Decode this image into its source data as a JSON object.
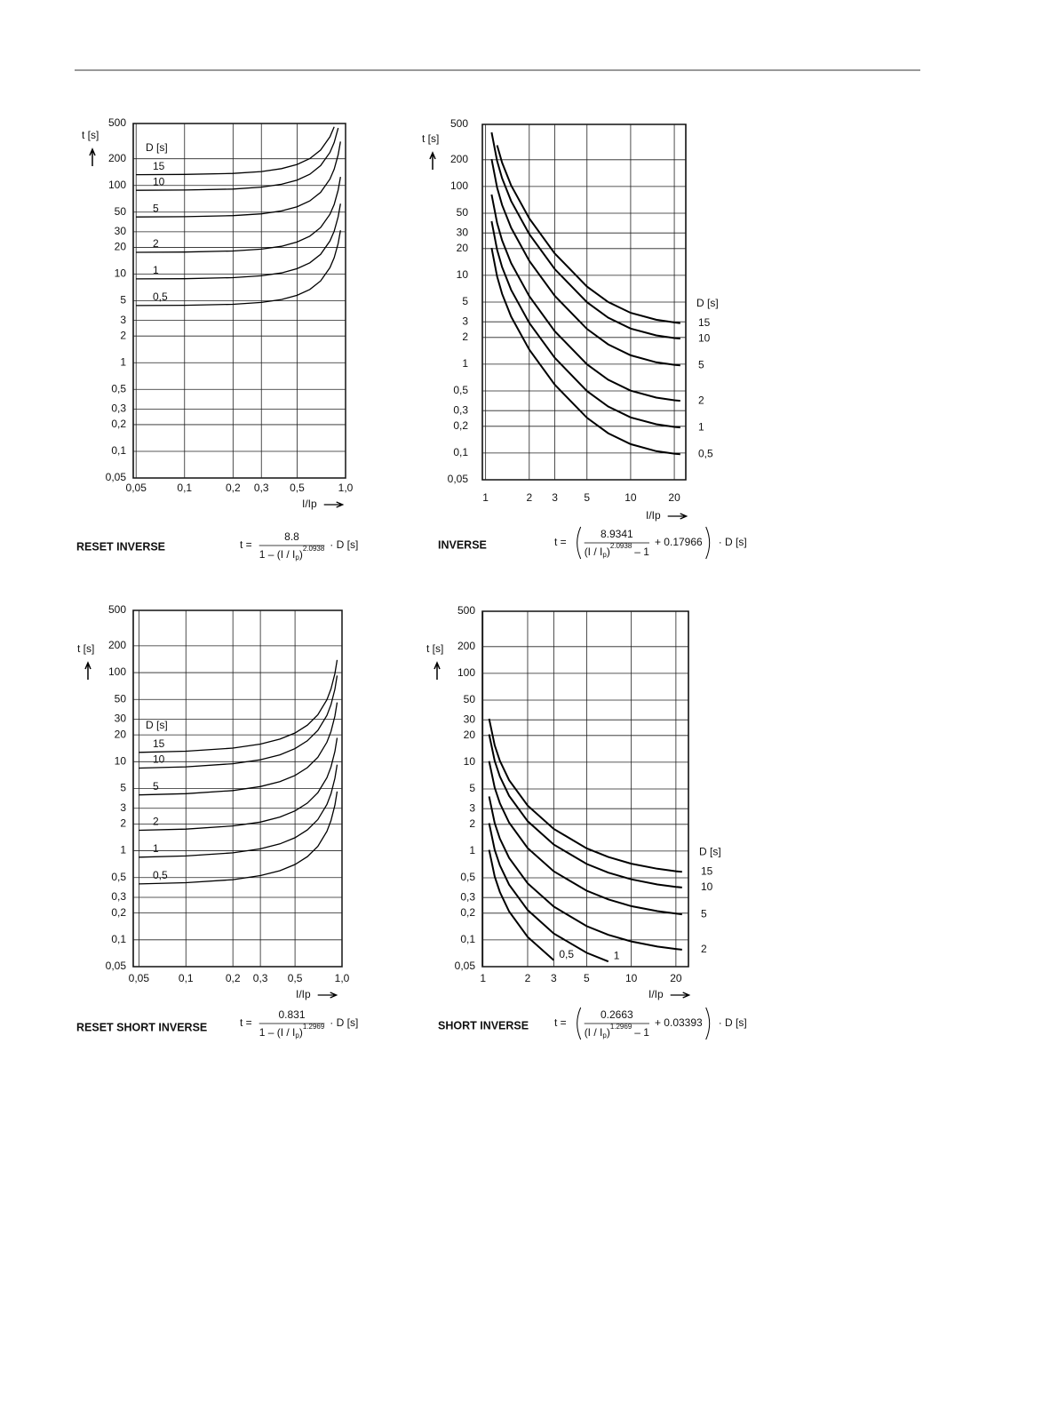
{
  "chart_data": [
    {
      "type": "line",
      "title": "RESET INVERSE",
      "xscale": "log",
      "yscale": "log",
      "xlabel": "I/Ip",
      "ylabel": "t [s]",
      "legend_title": "D [s]",
      "legend": "left",
      "grid": true,
      "formula": {
        "lhs": "t =",
        "numerator": "8.8",
        "denominator": "1 – (I / I",
        "subscript": "p",
        "close": ")",
        "exponent": "2.0938",
        "rhs": "· D [s]"
      },
      "x": [
        0.05,
        0.1,
        0.2,
        0.3,
        0.4,
        0.5,
        0.6,
        0.7,
        0.8,
        0.85,
        0.9,
        0.93
      ],
      "series": [
        {
          "name": "15",
          "color": "#000000",
          "values": [
            132.3,
            133.1,
            136.7,
            143.5,
            154.7,
            172.4,
            200.9,
            250.9,
            353.8,
            457.6,
            null,
            null
          ]
        },
        {
          "name": "10",
          "color": "#000000",
          "values": [
            88.2,
            88.7,
            91.1,
            95.7,
            103.1,
            114.9,
            133.9,
            167.3,
            235.8,
            305.1,
            444.5,
            null
          ]
        },
        {
          "name": "5",
          "color": "#000000",
          "values": [
            44.1,
            44.4,
            45.6,
            47.8,
            51.6,
            57.5,
            67.0,
            83.6,
            117.9,
            152.5,
            222.2,
            312.0
          ]
        },
        {
          "name": "2",
          "color": "#000000",
          "values": [
            17.6,
            17.7,
            18.2,
            19.1,
            20.6,
            23.0,
            26.8,
            33.5,
            47.2,
            61.0,
            88.9,
            124.8
          ]
        },
        {
          "name": "1",
          "color": "#000000",
          "values": [
            8.82,
            8.87,
            9.11,
            9.57,
            10.3,
            11.5,
            13.4,
            16.7,
            23.6,
            30.5,
            44.4,
            62.4
          ]
        },
        {
          "name": "0,5",
          "color": "#000000",
          "values": [
            4.41,
            4.44,
            4.56,
            4.78,
            5.16,
            5.75,
            6.7,
            8.36,
            11.8,
            15.3,
            22.2,
            31.2
          ]
        }
      ],
      "xlim": [
        0.048,
        1
      ],
      "ylim": [
        0.05,
        500
      ],
      "xticks": [
        {
          "value": 0.05,
          "label": "0,05"
        },
        {
          "value": 0.1,
          "label": "0,1"
        },
        {
          "value": 0.2,
          "label": "0,2"
        },
        {
          "value": 0.3,
          "label": "0,3"
        },
        {
          "value": 0.5,
          "label": "0,5"
        },
        {
          "value": 1,
          "label": "1,0"
        }
      ],
      "yticks": [
        500,
        200,
        100,
        50,
        30,
        20,
        10,
        5,
        3,
        2,
        1,
        {
          "value": 0.5,
          "label": "0,5"
        },
        {
          "value": 0.3,
          "label": "0,3"
        },
        {
          "value": 0.2,
          "label": "0,2"
        },
        {
          "value": 0.1,
          "label": "0,1"
        },
        {
          "value": 0.05,
          "label": "0,05"
        }
      ]
    },
    {
      "type": "line",
      "title": "INVERSE",
      "xscale": "log",
      "yscale": "log",
      "xlabel": "I/Ip",
      "ylabel": "t [s]",
      "legend_title": "D [s]",
      "legend": "right",
      "grid": true,
      "formula": {
        "lhs": "t =",
        "numerator": "8.9341",
        "denominator": "(I / I",
        "subscript": "p",
        "close": ")",
        "exponent": "2.0938",
        "tail": "– 1",
        "addend": "+ 0.17966",
        "rhs": "· D [s]"
      },
      "x": [
        1.1,
        1.2,
        1.3,
        1.5,
        2,
        3,
        5,
        7,
        10,
        15,
        20,
        22
      ],
      "series": [
        {
          "name": "15",
          "color": "#000000",
          "values": [
            null,
            291.0,
            185.7,
            102.9,
            43.7,
            17.63,
            7.47,
            5.01,
            3.78,
            3.16,
            2.95,
            2.9
          ]
        },
        {
          "name": "10",
          "color": "#000000",
          "values": [
            406.2,
            194.0,
            123.8,
            68.6,
            29.13,
            11.75,
            4.98,
            3.34,
            2.52,
            2.11,
            1.97,
            1.94
          ]
        },
        {
          "name": "5",
          "color": "#000000",
          "values": [
            203.1,
            97.0,
            61.9,
            34.3,
            14.57,
            5.88,
            2.49,
            1.67,
            1.26,
            1.05,
            0.983,
            0.968
          ]
        },
        {
          "name": "2",
          "color": "#000000",
          "values": [
            81.2,
            38.8,
            24.8,
            13.72,
            5.83,
            2.35,
            0.996,
            0.668,
            0.504,
            0.421,
            0.393,
            0.387
          ]
        },
        {
          "name": "1",
          "color": "#000000",
          "values": [
            40.6,
            19.4,
            12.38,
            6.86,
            2.91,
            1.18,
            0.498,
            0.334,
            0.252,
            0.211,
            0.197,
            0.194
          ]
        },
        {
          "name": "0,5",
          "color": "#000000",
          "values": [
            20.3,
            9.7,
            6.19,
            3.43,
            1.46,
            0.588,
            0.249,
            0.167,
            0.126,
            0.105,
            0.0983,
            0.0968
          ]
        }
      ],
      "xlim": [
        0.95,
        24
      ],
      "ylim": [
        0.05,
        500
      ],
      "xticks": [
        1,
        2,
        3,
        5,
        10,
        20
      ],
      "yticks": [
        500,
        200,
        100,
        50,
        30,
        20,
        10,
        5,
        3,
        2,
        1,
        {
          "value": 0.5,
          "label": "0,5"
        },
        {
          "value": 0.3,
          "label": "0,3"
        },
        {
          "value": 0.2,
          "label": "0,2"
        },
        {
          "value": 0.1,
          "label": "0,1"
        },
        {
          "value": 0.05,
          "label": "0,05"
        }
      ]
    },
    {
      "type": "line",
      "title": "RESET SHORT INVERSE",
      "xscale": "log",
      "yscale": "log",
      "xlabel": "I/Ip",
      "ylabel": "t [s]",
      "legend_title": "D [s]",
      "legend": "left",
      "grid": true,
      "formula": {
        "lhs": "t =",
        "numerator": "0.831",
        "denominator": "1 – (I / I",
        "subscript": "p",
        "close": ")",
        "exponent": "1.2969",
        "rhs": "· D [s]"
      },
      "x": [
        0.05,
        0.1,
        0.2,
        0.3,
        0.4,
        0.5,
        0.6,
        0.7,
        0.8,
        0.85,
        0.9,
        0.93
      ],
      "series": [
        {
          "name": "15",
          "color": "#000000",
          "values": [
            12.73,
            13.13,
            14.23,
            15.77,
            17.93,
            21.02,
            25.73,
            33.65,
            49.6,
            65.57,
            97.61,
            138.9
          ]
        },
        {
          "name": "10",
          "color": "#000000",
          "values": [
            8.48,
            8.75,
            9.49,
            10.52,
            11.95,
            14.01,
            17.16,
            22.44,
            33.07,
            43.71,
            65.08,
            92.6
          ]
        },
        {
          "name": "5",
          "color": "#000000",
          "values": [
            4.24,
            4.38,
            4.74,
            5.26,
            5.98,
            7.01,
            8.58,
            11.22,
            16.53,
            21.86,
            32.54,
            46.3
          ]
        },
        {
          "name": "2",
          "color": "#000000",
          "values": [
            1.7,
            1.75,
            1.9,
            2.1,
            2.39,
            2.8,
            3.43,
            4.49,
            6.61,
            8.74,
            13.02,
            18.5
          ]
        },
        {
          "name": "1",
          "color": "#000000",
          "values": [
            0.848,
            0.875,
            0.949,
            1.052,
            1.195,
            1.401,
            1.716,
            2.244,
            3.307,
            4.371,
            6.508,
            9.26
          ]
        },
        {
          "name": "0,5",
          "color": "#000000",
          "values": [
            0.424,
            0.438,
            0.474,
            0.526,
            0.598,
            0.701,
            0.858,
            1.122,
            1.653,
            2.186,
            3.254,
            4.63
          ]
        }
      ],
      "xlim": [
        0.046,
        1
      ],
      "ylim": [
        0.05,
        500
      ],
      "xticks": [
        {
          "value": 0.05,
          "label": "0,05"
        },
        {
          "value": 0.1,
          "label": "0,1"
        },
        {
          "value": 0.2,
          "label": "0,2"
        },
        {
          "value": 0.3,
          "label": "0,3"
        },
        {
          "value": 0.5,
          "label": "0,5"
        },
        {
          "value": 1,
          "label": "1,0"
        }
      ],
      "yticks": [
        500,
        200,
        100,
        50,
        30,
        20,
        10,
        5,
        3,
        2,
        1,
        {
          "value": 0.5,
          "label": "0,5"
        },
        {
          "value": 0.3,
          "label": "0,3"
        },
        {
          "value": 0.2,
          "label": "0,2"
        },
        {
          "value": 0.1,
          "label": "0,1"
        },
        {
          "value": 0.05,
          "label": "0,05"
        }
      ]
    },
    {
      "type": "line",
      "title": "SHORT INVERSE",
      "xscale": "log",
      "yscale": "log",
      "xlabel": "I/Ip",
      "ylabel": "t [s]",
      "legend_title": "D [s]",
      "legend": "right",
      "grid": true,
      "formula": {
        "lhs": "t =",
        "numerator": "0.2663",
        "denominator": "(I / I",
        "subscript": "p",
        "close": ")",
        "exponent": "1.2969",
        "tail": "– 1",
        "addend": "+ 0.03393",
        "rhs": "· D [s]"
      },
      "x": [
        1.1,
        1.2,
        1.3,
        1.5,
        2,
        3,
        5,
        7,
        10,
        15,
        20,
        22
      ],
      "series": [
        {
          "name": "15",
          "color": "#000000",
          "values": [
            30.9,
            15.48,
            10.37,
            6.28,
            3.25,
            1.775,
            1.074,
            0.857,
            0.721,
            0.632,
            0.593,
            0.583
          ]
        },
        {
          "name": "10",
          "color": "#000000",
          "values": [
            20.6,
            10.32,
            6.91,
            4.19,
            2.17,
            1.183,
            0.716,
            0.571,
            0.481,
            0.421,
            0.395,
            0.389
          ]
        },
        {
          "name": "5",
          "color": "#000000",
          "values": [
            10.29,
            5.16,
            3.46,
            2.09,
            1.08,
            0.592,
            0.358,
            0.286,
            0.24,
            0.211,
            0.198,
            0.194
          ]
        },
        {
          "name": "2",
          "color": "#000000",
          "values": [
            4.12,
            2.06,
            1.38,
            0.838,
            0.433,
            0.237,
            0.143,
            0.114,
            0.0962,
            0.0842,
            0.079,
            0.0777
          ]
        },
        {
          "name": "1",
          "color": "#000000",
          "values": [
            2.06,
            1.03,
            0.691,
            0.419,
            0.217,
            0.118,
            0.0716,
            0.0571,
            null,
            null,
            null,
            null
          ]
        },
        {
          "name": "0,5",
          "color": "#000000",
          "values": [
            1.03,
            0.516,
            0.346,
            0.209,
            0.108,
            0.0592,
            null,
            null,
            null,
            null,
            null,
            null
          ]
        }
      ],
      "xlim": [
        0.99,
        24.3
      ],
      "ylim": [
        0.05,
        500
      ],
      "xticks": [
        1,
        2,
        3,
        5,
        10,
        20
      ],
      "yticks": [
        500,
        200,
        100,
        50,
        30,
        20,
        10,
        5,
        3,
        2,
        1,
        {
          "value": 0.5,
          "label": "0,5"
        },
        {
          "value": 0.3,
          "label": "0,3"
        },
        {
          "value": 0.2,
          "label": "0,2"
        },
        {
          "value": 0.1,
          "label": "0,1"
        },
        {
          "value": 0.05,
          "label": "0,05"
        }
      ]
    }
  ]
}
